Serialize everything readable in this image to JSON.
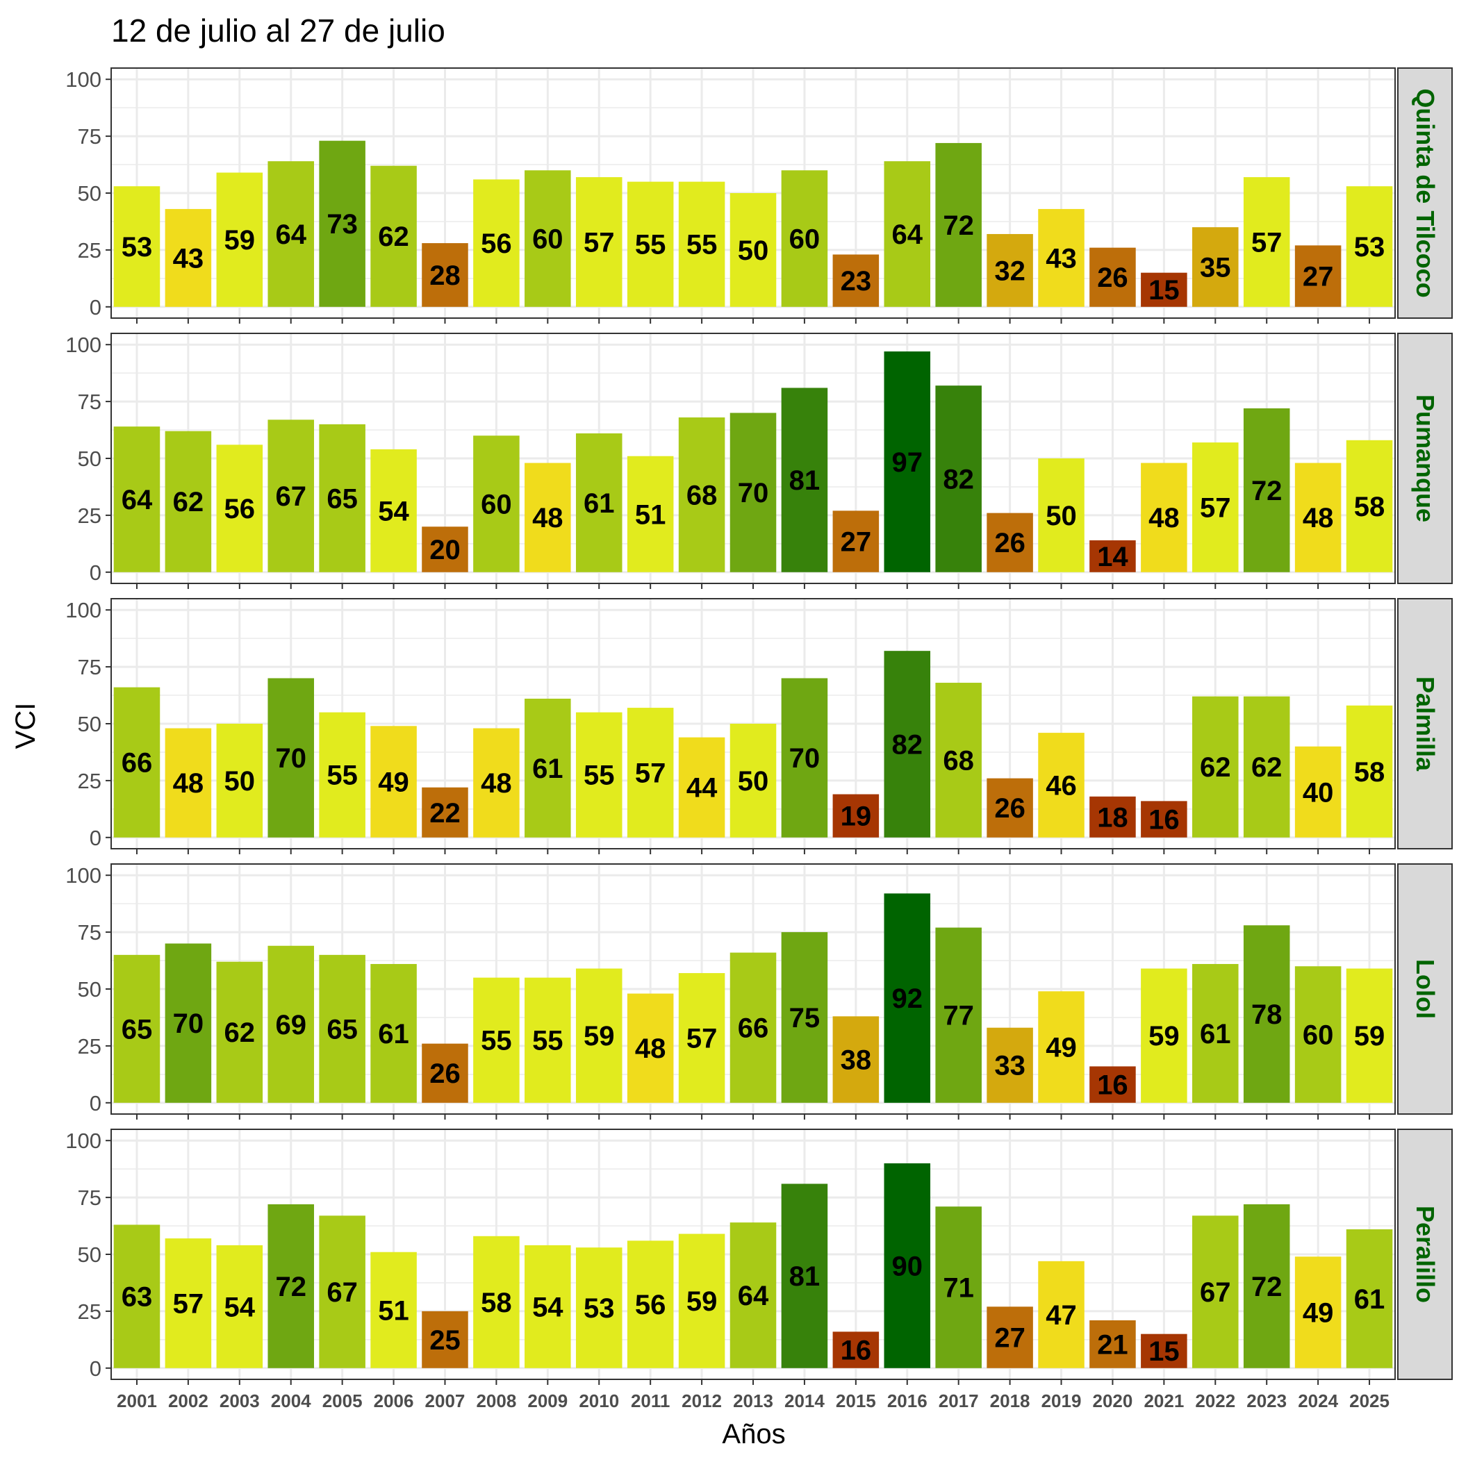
{
  "chart_data": {
    "type": "bar",
    "title": "12 de julio al 27 de julio",
    "xlabel": "Años",
    "ylabel": "VCI",
    "ylim": [
      0,
      100
    ],
    "yticks": [
      0,
      25,
      50,
      75,
      100
    ],
    "grid": true,
    "legend": "none",
    "categories": [
      "2001",
      "2002",
      "2003",
      "2004",
      "2005",
      "2006",
      "2007",
      "2008",
      "2009",
      "2010",
      "2011",
      "2012",
      "2013",
      "2014",
      "2015",
      "2016",
      "2017",
      "2018",
      "2019",
      "2020",
      "2021",
      "2022",
      "2023",
      "2024",
      "2025"
    ],
    "panels": [
      {
        "name": "Quinta de Tilcoco",
        "values": [
          53,
          43,
          59,
          64,
          73,
          62,
          28,
          56,
          60,
          57,
          55,
          55,
          50,
          60,
          23,
          64,
          72,
          32,
          43,
          26,
          15,
          35,
          57,
          27,
          53
        ]
      },
      {
        "name": "Pumanque",
        "values": [
          64,
          62,
          56,
          67,
          65,
          54,
          20,
          60,
          48,
          61,
          51,
          68,
          70,
          81,
          27,
          97,
          82,
          26,
          50,
          14,
          48,
          57,
          72,
          48,
          58
        ]
      },
      {
        "name": "Palmilla",
        "values": [
          66,
          48,
          50,
          70,
          55,
          49,
          22,
          48,
          61,
          55,
          57,
          44,
          50,
          70,
          19,
          82,
          68,
          26,
          46,
          18,
          16,
          62,
          62,
          40,
          58
        ]
      },
      {
        "name": "Lolol",
        "values": [
          65,
          70,
          62,
          69,
          65,
          61,
          26,
          55,
          55,
          59,
          48,
          57,
          66,
          75,
          38,
          92,
          77,
          33,
          49,
          16,
          59,
          61,
          78,
          60,
          59
        ]
      },
      {
        "name": "Peralillo",
        "values": [
          63,
          57,
          54,
          72,
          67,
          51,
          25,
          58,
          54,
          53,
          56,
          59,
          64,
          81,
          16,
          90,
          71,
          27,
          47,
          21,
          15,
          67,
          72,
          49,
          61
        ]
      }
    ],
    "colors": {
      "c1": "#A63603",
      "c2": "#BD6E0A",
      "c3": "#D4A90E",
      "c4": "#F0DC1C",
      "c5": "#E1EB1E",
      "c6": "#A8CA17",
      "c7": "#6FA712",
      "c8": "#37820B",
      "c9": "#006400",
      "strip_fill": "#D9D9D9",
      "strip_text": "#006400",
      "grid": "#EBEBEB",
      "panel_border": "#333333",
      "axis_text": "#4D4D4D"
    }
  }
}
